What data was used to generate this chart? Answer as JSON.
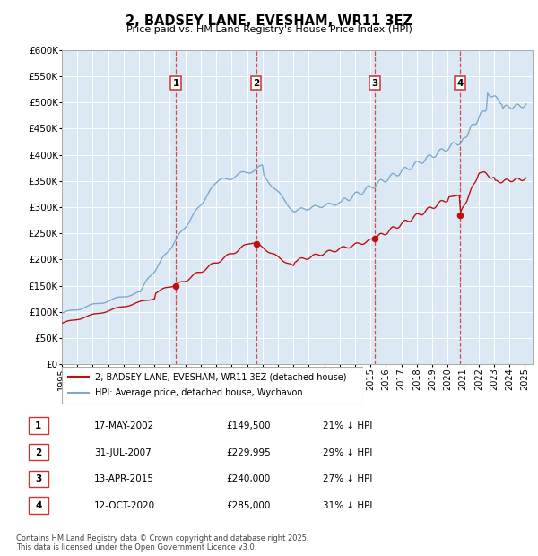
{
  "title": "2, BADSEY LANE, EVESHAM, WR11 3EZ",
  "subtitle": "Price paid vs. HM Land Registry's House Price Index (HPI)",
  "ylim": [
    0,
    600000
  ],
  "yticks": [
    0,
    50000,
    100000,
    150000,
    200000,
    250000,
    300000,
    350000,
    400000,
    450000,
    500000,
    550000,
    600000
  ],
  "ytick_labels": [
    "£0",
    "£50K",
    "£100K",
    "£150K",
    "£200K",
    "£250K",
    "£300K",
    "£350K",
    "£400K",
    "£450K",
    "£500K",
    "£550K",
    "£600K"
  ],
  "hpi_color": "#7eaacc",
  "price_color": "#bb1111",
  "dashed_line_color": "#cc3333",
  "background_color": "#dce9f5",
  "legend_label_price": "2, BADSEY LANE, EVESHAM, WR11 3EZ (detached house)",
  "legend_label_hpi": "HPI: Average price, detached house, Wychavon",
  "footer": "Contains HM Land Registry data © Crown copyright and database right 2025.\nThis data is licensed under the Open Government Licence v3.0.",
  "transactions": [
    {
      "num": 1,
      "date": "17-MAY-2002",
      "price": 149500,
      "pct": "21%",
      "x_year": 2002.38
    },
    {
      "num": 2,
      "date": "31-JUL-2007",
      "price": 229995,
      "pct": "29%",
      "x_year": 2007.58
    },
    {
      "num": 3,
      "date": "13-APR-2015",
      "price": 240000,
      "pct": "27%",
      "x_year": 2015.28
    },
    {
      "num": 4,
      "date": "12-OCT-2020",
      "price": 285000,
      "pct": "31%",
      "x_year": 2020.79
    }
  ],
  "xlim": [
    1995.0,
    2025.5
  ],
  "xticks": [
    1995,
    1996,
    1997,
    1998,
    1999,
    2000,
    2001,
    2002,
    2003,
    2004,
    2005,
    2006,
    2007,
    2008,
    2009,
    2010,
    2011,
    2012,
    2013,
    2014,
    2015,
    2016,
    2017,
    2018,
    2019,
    2020,
    2021,
    2022,
    2023,
    2024,
    2025
  ]
}
